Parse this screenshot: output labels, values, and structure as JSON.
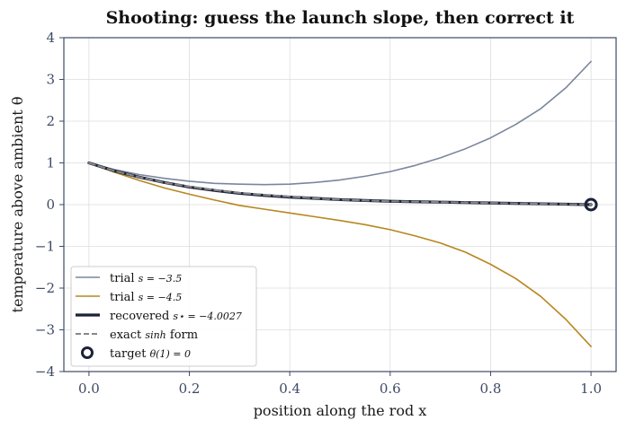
{
  "chart_data": {
    "type": "line",
    "title": "Shooting: guess the launch slope, then correct it",
    "xlabel": "position along the rod  x",
    "ylabel": "temperature above ambient  θ",
    "xlim": [
      -0.05,
      1.05
    ],
    "ylim": [
      -4,
      4
    ],
    "x_ticks": [
      0.0,
      0.2,
      0.4,
      0.6,
      0.8,
      1.0
    ],
    "x_tick_labels": [
      "0.0",
      "0.2",
      "0.4",
      "0.6",
      "0.8",
      "1.0"
    ],
    "y_ticks": [
      -4,
      -3,
      -2,
      -1,
      0,
      1,
      2,
      3,
      4
    ],
    "y_tick_labels": [
      "−4",
      "−3",
      "−2",
      "−1",
      "0",
      "1",
      "2",
      "3",
      "4"
    ],
    "grid": true,
    "legend_position": "lower-left",
    "x": [
      0.0,
      0.05,
      0.1,
      0.15,
      0.2,
      0.25,
      0.3,
      0.35,
      0.4,
      0.45,
      0.5,
      0.55,
      0.6,
      0.65,
      0.7,
      0.75,
      0.8,
      0.85,
      0.9,
      0.95,
      1.0
    ],
    "series": [
      {
        "name": "trial s = −3.5",
        "color": "#7a869e",
        "style": "solid",
        "values": [
          1.0,
          0.84,
          0.72,
          0.63,
          0.56,
          0.51,
          0.49,
          0.48,
          0.49,
          0.53,
          0.59,
          0.68,
          0.79,
          0.94,
          1.12,
          1.34,
          1.6,
          1.92,
          2.3,
          2.8,
          3.43
        ]
      },
      {
        "name": "trial s = −4.5",
        "color": "#b8861e",
        "style": "solid",
        "values": [
          1.0,
          0.78,
          0.58,
          0.4,
          0.25,
          0.11,
          -0.02,
          -0.11,
          -0.2,
          -0.29,
          -0.38,
          -0.48,
          -0.6,
          -0.75,
          -0.92,
          -1.14,
          -1.43,
          -1.77,
          -2.2,
          -2.75,
          -3.4
        ]
      },
      {
        "name": "recovered s⋆ = −4.0027",
        "color": "#1b2238",
        "style": "thick",
        "values": [
          1.0,
          0.81,
          0.66,
          0.53,
          0.42,
          0.34,
          0.27,
          0.22,
          0.18,
          0.15,
          0.12,
          0.1,
          0.08,
          0.07,
          0.06,
          0.05,
          0.04,
          0.03,
          0.02,
          0.01,
          0.0
        ]
      },
      {
        "name": "exact sinh form",
        "color": "#888888",
        "style": "dashed",
        "values": [
          1.0,
          0.81,
          0.66,
          0.53,
          0.43,
          0.35,
          0.28,
          0.23,
          0.19,
          0.15,
          0.12,
          0.1,
          0.08,
          0.07,
          0.06,
          0.05,
          0.04,
          0.03,
          0.02,
          0.01,
          0.0
        ]
      }
    ],
    "target": {
      "name": "target θ(1) = 0",
      "x": 1.0,
      "y": 0.0,
      "color": "#1b2238"
    },
    "legend": [
      {
        "label_prefix": "trial ",
        "label_math": "s = −3.5",
        "kind": "line",
        "color": "#7a869e"
      },
      {
        "label_prefix": "trial ",
        "label_math": "s = −4.5",
        "kind": "line",
        "color": "#b8861e"
      },
      {
        "label_prefix": "recovered ",
        "label_math": "s⋆ = −4.0027",
        "kind": "thick",
        "color": "#1b2238"
      },
      {
        "label_prefix": "exact ",
        "label_math": "sinh",
        "label_suffix": " form",
        "kind": "dashed",
        "color": "#888888"
      },
      {
        "label_prefix": "target ",
        "label_math": "θ(1) = 0",
        "kind": "marker",
        "color": "#1b2238"
      }
    ]
  }
}
